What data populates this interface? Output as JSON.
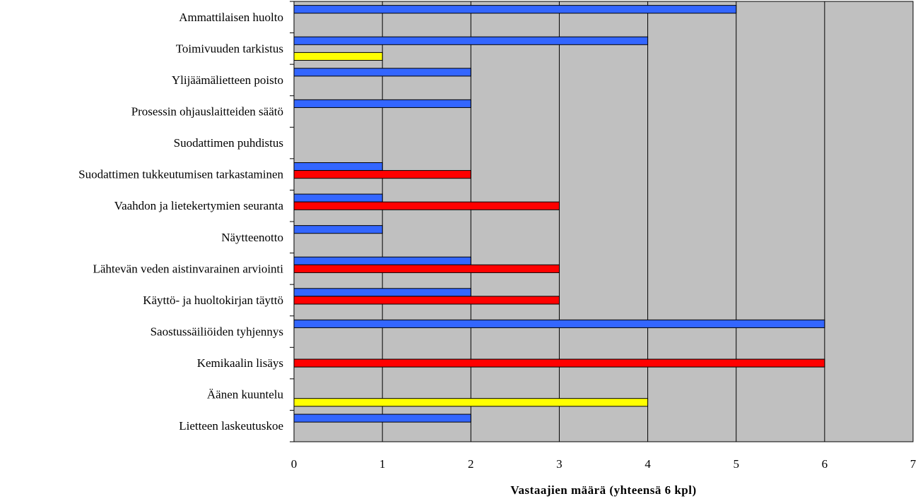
{
  "chart_data": {
    "type": "bar",
    "orientation": "horizontal",
    "categories": [
      "Ammattilaisen huolto",
      "Toimivuuden tarkistus",
      "Ylijäämälietteen poisto",
      "Prosessin ohjauslaitteiden säätö",
      "Suodattimen puhdistus",
      "Suodattimen tukkeutumisen tarkastaminen",
      "Vaahdon ja lietekertymien seuranta",
      "Näytteenotto",
      "Lähtevän veden aistinvarainen arviointi",
      "Käyttö- ja huoltokirjan täyttö",
      "Saostussäiliöiden tyhjennys",
      "Kemikaalin lisäys",
      "Äänen kuuntelu",
      "Lietteen laskeutuskoe"
    ],
    "series": [
      {
        "color": "#3366ff",
        "values": [
          5,
          4,
          2,
          2,
          0,
          1,
          1,
          1,
          2,
          2,
          6,
          0,
          0,
          2
        ]
      },
      {
        "color": "#ff0000",
        "values": [
          0,
          0,
          0,
          0,
          0,
          2,
          3,
          0,
          3,
          3,
          0,
          6,
          0,
          0
        ]
      },
      {
        "color": "#ffff00",
        "values": [
          0,
          1,
          0,
          0,
          0,
          0,
          0,
          0,
          0,
          0,
          0,
          0,
          4,
          0
        ]
      }
    ],
    "xlim": [
      0,
      7
    ],
    "xticks": [
      "0",
      "1",
      "2",
      "3",
      "4",
      "5",
      "6",
      "7"
    ],
    "xlabel": "Vastaajien määrä (yhteensä 6 kpl)",
    "grid": true,
    "plot_background": "#c0c0c0",
    "legend": "none"
  }
}
